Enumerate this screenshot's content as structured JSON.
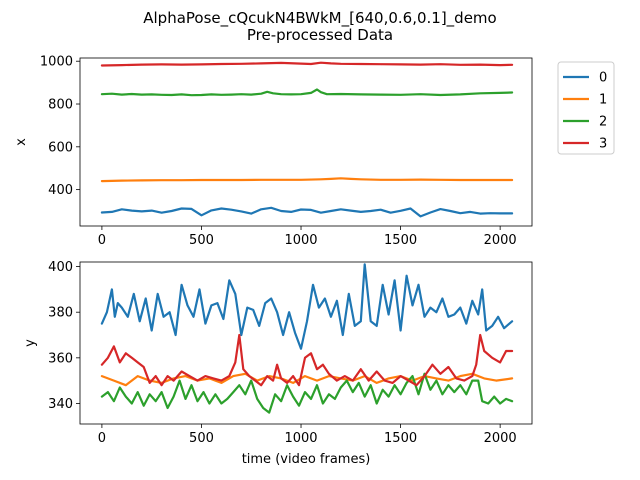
{
  "chart_data": {
    "type": "line",
    "title": "AlphaPose_cQcukN4BWkM_[640,0.6,0.1]_demo",
    "subtitle": "Pre-processed Data",
    "legend_position": "outside-right",
    "legend": [
      {
        "name": "0",
        "color": "#1f77b4"
      },
      {
        "name": "1",
        "color": "#ff7f0e"
      },
      {
        "name": "2",
        "color": "#2ca02c"
      },
      {
        "name": "3",
        "color": "#d62728"
      }
    ],
    "panels": [
      {
        "ylabel": "x",
        "xlabel": "",
        "xlim": [
          -110,
          2160
        ],
        "ylim": [
          230,
          1015
        ],
        "x_ticks": [
          "0",
          "500",
          "1000",
          "1500",
          "2000"
        ],
        "y_ticks": [
          "400",
          "600",
          "800",
          "1000"
        ],
        "grid": false,
        "series": [
          {
            "name": "0",
            "color": "#1f77b4",
            "x": [
              0,
              50,
              100,
              150,
              200,
              250,
              300,
              350,
              400,
              450,
              500,
              550,
              600,
              650,
              700,
              750,
              800,
              850,
              900,
              950,
              1000,
              1050,
              1100,
              1150,
              1200,
              1250,
              1300,
              1350,
              1400,
              1450,
              1500,
              1550,
              1600,
              1650,
              1700,
              1750,
              1800,
              1850,
              1900,
              1950,
              2000,
              2060
            ],
            "y": [
              293,
              296,
              308,
              302,
              298,
              302,
              292,
              300,
              312,
              310,
              280,
              303,
              312,
              306,
              298,
              288,
              308,
              315,
              300,
              296,
              307,
              305,
              292,
              300,
              308,
              302,
              296,
              300,
              306,
              292,
              301,
              312,
              275,
              293,
              309,
              300,
              290,
              296,
              288,
              290,
              289,
              289
            ]
          },
          {
            "name": "1",
            "color": "#ff7f0e",
            "x": [
              0,
              100,
              200,
              300,
              400,
              500,
              600,
              700,
              800,
              900,
              1000,
              1100,
              1150,
              1200,
              1250,
              1300,
              1400,
              1500,
              1600,
              1700,
              1800,
              1900,
              2000,
              2060
            ],
            "y": [
              440,
              442,
              443,
              444,
              444,
              445,
              445,
              445,
              446,
              446,
              446,
              448,
              450,
              453,
              450,
              448,
              446,
              446,
              447,
              446,
              445,
              445,
              445,
              445
            ]
          },
          {
            "name": "2",
            "color": "#2ca02c",
            "x": [
              0,
              50,
              100,
              150,
              200,
              250,
              300,
              350,
              400,
              450,
              500,
              550,
              600,
              650,
              700,
              750,
              800,
              830,
              860,
              900,
              950,
              1000,
              1050,
              1080,
              1100,
              1130,
              1200,
              1300,
              1400,
              1500,
              1600,
              1700,
              1800,
              1900,
              2000,
              2060
            ],
            "y": [
              846,
              848,
              844,
              847,
              844,
              845,
              843,
              842,
              845,
              841,
              842,
              845,
              843,
              844,
              846,
              844,
              848,
              857,
              850,
              846,
              845,
              846,
              852,
              868,
              855,
              846,
              847,
              845,
              844,
              843,
              846,
              842,
              845,
              850,
              852,
              854
            ]
          },
          {
            "name": "3",
            "color": "#d62728",
            "x": [
              0,
              100,
              200,
              300,
              400,
              500,
              600,
              700,
              800,
              900,
              1000,
              1050,
              1100,
              1150,
              1200,
              1300,
              1400,
              1500,
              1600,
              1700,
              1800,
              1900,
              2000,
              2060
            ],
            "y": [
              980,
              982,
              984,
              985,
              984,
              985,
              987,
              988,
              990,
              992,
              989,
              987,
              993,
              990,
              988,
              987,
              986,
              985,
              984,
              986,
              983,
              984,
              982,
              983
            ]
          }
        ]
      },
      {
        "ylabel": "y",
        "xlabel": "time (video frames)",
        "xlim": [
          -110,
          2160
        ],
        "ylim": [
          331,
          402
        ],
        "x_ticks": [
          "0",
          "500",
          "1000",
          "1500",
          "2000"
        ],
        "y_ticks": [
          "340",
          "360",
          "380",
          "400"
        ],
        "grid": false,
        "series": [
          {
            "name": "0",
            "color": "#1f77b4",
            "x": [
              0,
              25,
              50,
              65,
              80,
              100,
              130,
              160,
              190,
              220,
              250,
              280,
              310,
              340,
              370,
              400,
              430,
              460,
              490,
              520,
              550,
              580,
              610,
              640,
              670,
              700,
              730,
              760,
              790,
              820,
              850,
              880,
              910,
              940,
              970,
              1000,
              1030,
              1060,
              1090,
              1120,
              1150,
              1180,
              1210,
              1240,
              1270,
              1300,
              1320,
              1350,
              1380,
              1410,
              1440,
              1470,
              1500,
              1530,
              1560,
              1590,
              1620,
              1650,
              1680,
              1710,
              1740,
              1770,
              1800,
              1830,
              1860,
              1890,
              1910,
              1930,
              1960,
              1990,
              2020,
              2060
            ],
            "y": [
              375,
              380,
              390,
              378,
              384,
              382,
              378,
              388,
              376,
              386,
              372,
              388,
              378,
              380,
              370,
              392,
              383,
              378,
              390,
              375,
              383,
              384,
              377,
              394,
              388,
              370,
              382,
              381,
              374,
              384,
              386,
              380,
              370,
              380,
              371,
              364,
              376,
              392,
              382,
              386,
              378,
              385,
              370,
              388,
              374,
              376,
              401,
              376,
              374,
              392,
              379,
              394,
              372,
              396,
              383,
              392,
              378,
              382,
              380,
              386,
              378,
              379,
              382,
              375,
              385,
              379,
              390,
              372,
              374,
              378,
              373,
              376
            ]
          },
          {
            "name": "1",
            "color": "#ff7f0e",
            "x": [
              0,
              60,
              120,
              180,
              240,
              300,
              360,
              420,
              480,
              540,
              600,
              660,
              720,
              780,
              840,
              900,
              960,
              1020,
              1080,
              1140,
              1200,
              1260,
              1320,
              1380,
              1440,
              1500,
              1560,
              1620,
              1680,
              1740,
              1800,
              1860,
              1920,
              1980,
              2060
            ],
            "y": [
              352,
              350,
              348,
              352,
              350,
              349,
              351,
              352,
              350,
              351,
              349,
              352,
              353,
              350,
              352,
              351,
              349,
              352,
              350,
              352,
              351,
              350,
              352,
              349,
              351,
              352,
              350,
              352,
              351,
              350,
              352,
              353,
              351,
              350,
              351
            ]
          },
          {
            "name": "2",
            "color": "#2ca02c",
            "x": [
              0,
              30,
              60,
              90,
              120,
              150,
              180,
              210,
              240,
              270,
              300,
              330,
              360,
              390,
              420,
              450,
              480,
              510,
              540,
              570,
              600,
              630,
              660,
              690,
              720,
              750,
              780,
              810,
              840,
              870,
              900,
              930,
              960,
              990,
              1020,
              1050,
              1080,
              1110,
              1140,
              1170,
              1200,
              1230,
              1260,
              1290,
              1320,
              1350,
              1380,
              1410,
              1440,
              1470,
              1500,
              1530,
              1560,
              1590,
              1620,
              1650,
              1680,
              1710,
              1740,
              1770,
              1800,
              1830,
              1860,
              1890,
              1910,
              1940,
              1970,
              2000,
              2030,
              2060
            ],
            "y": [
              343,
              345,
              341,
              347,
              343,
              340,
              345,
              339,
              344,
              341,
              345,
              338,
              343,
              350,
              342,
              348,
              341,
              345,
              340,
              344,
              340,
              342,
              345,
              348,
              344,
              350,
              342,
              338,
              336,
              344,
              341,
              348,
              343,
              339,
              345,
              342,
              348,
              340,
              344,
              342,
              347,
              350,
              345,
              349,
              343,
              348,
              340,
              346,
              343,
              348,
              344,
              349,
              352,
              344,
              353,
              346,
              350,
              344,
              348,
              345,
              348,
              344,
              350,
              350,
              341,
              340,
              343,
              340,
              342,
              341
            ]
          },
          {
            "name": "3",
            "color": "#d62728",
            "x": [
              0,
              30,
              60,
              90,
              120,
              150,
              180,
              210,
              240,
              270,
              300,
              330,
              360,
              400,
              440,
              480,
              520,
              560,
              600,
              640,
              670,
              690,
              710,
              740,
              770,
              800,
              830,
              860,
              880,
              900,
              930,
              960,
              990,
              1020,
              1050,
              1080,
              1110,
              1140,
              1180,
              1220,
              1260,
              1300,
              1340,
              1380,
              1420,
              1460,
              1500,
              1540,
              1580,
              1620,
              1660,
              1700,
              1740,
              1780,
              1820,
              1860,
              1880,
              1900,
              1920,
              1960,
              2000,
              2030,
              2060
            ],
            "y": [
              357,
              360,
              365,
              358,
              362,
              360,
              358,
              356,
              349,
              352,
              348,
              352,
              350,
              354,
              352,
              350,
              352,
              351,
              350,
              352,
              358,
              370,
              355,
              352,
              350,
              348,
              352,
              350,
              357,
              351,
              349,
              352,
              348,
              360,
              362,
              355,
              357,
              353,
              350,
              352,
              350,
              355,
              350,
              354,
              350,
              349,
              352,
              350,
              348,
              352,
              357,
              353,
              356,
              351,
              350,
              352,
              357,
              370,
              363,
              360,
              358,
              363,
              363
            ]
          }
        ]
      }
    ]
  }
}
